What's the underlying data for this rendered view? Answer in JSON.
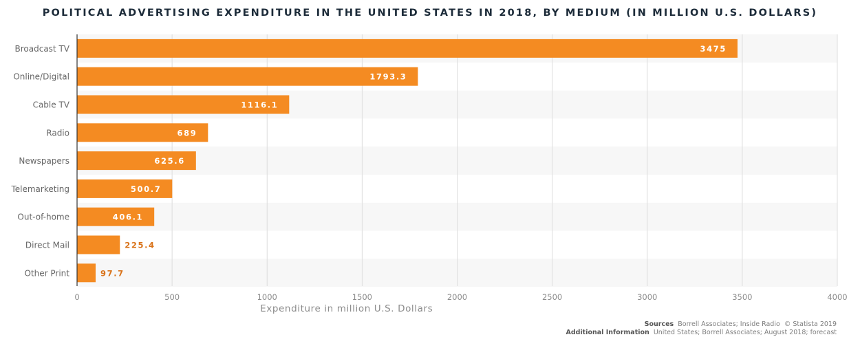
{
  "chart_data": {
    "type": "bar",
    "orientation": "horizontal",
    "title": "POLITICAL ADVERTISING EXPENDITURE IN THE UNITED STATES IN 2018, BY MEDIUM (IN MILLION U.S. DOLLARS)",
    "xlabel": "Expenditure in million U.S. Dollars",
    "ylabel": "",
    "categories": [
      "Broadcast TV",
      "Online/Digital",
      "Cable TV",
      "Radio",
      "Newspapers",
      "Telemarketing",
      "Out-of-home",
      "Direct Mail",
      "Other Print"
    ],
    "values": [
      3475,
      1793.3,
      1116.1,
      689,
      625.6,
      500.7,
      406.1,
      225.4,
      97.7
    ],
    "value_labels": [
      "3475",
      "1793.3",
      "1116.1",
      "689",
      "625.6",
      "500.7",
      "406.1",
      "225.4",
      "97.7"
    ],
    "xlim": [
      0,
      4000
    ],
    "xticks": [
      0,
      500,
      1000,
      1500,
      2000,
      2500,
      3000,
      3500,
      4000
    ],
    "grid": "vertical",
    "legend": "none",
    "colors": {
      "bar": "#f48b22",
      "label_inside": "#ffffff",
      "label_outside": "#d9731a",
      "band": "#f7f7f7",
      "grid": "#dcdcdc",
      "axis": "#333333",
      "tick_text": "#8c8c8c",
      "category_text": "#666666",
      "title": "#1c2b39"
    }
  },
  "footer": {
    "sources_label": "Sources",
    "sources_text": "Borrell Associates; Inside Radio",
    "copyright": "© Statista 2019",
    "info_label": "Additional Information",
    "info_text": "United States; Borrell Associates; August 2018; forecast"
  }
}
